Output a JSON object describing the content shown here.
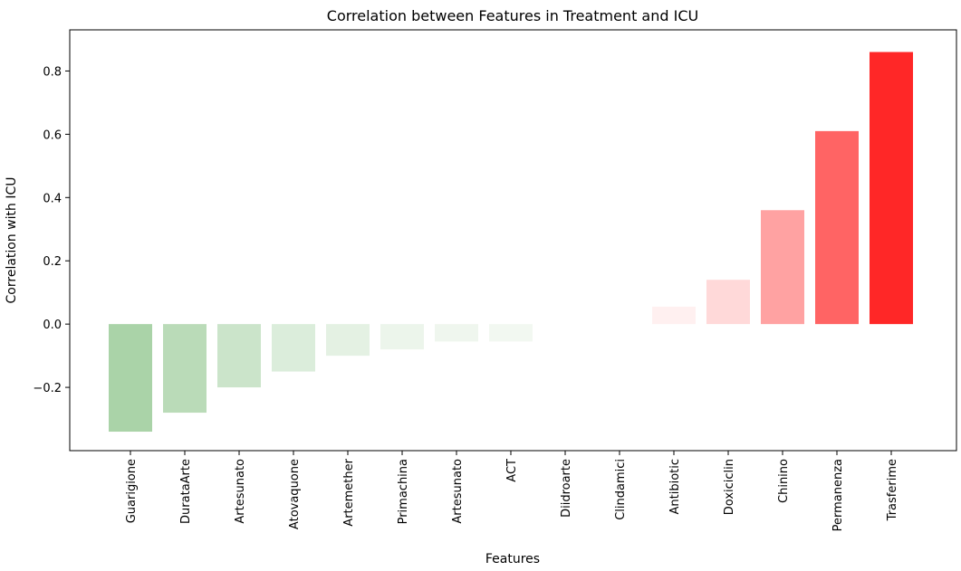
{
  "chart_data": {
    "type": "bar",
    "title": "Correlation between Features in Treatment and ICU",
    "xlabel": "Features",
    "ylabel": "Correlation with ICU",
    "categories": [
      "Guarigione",
      "DurataArte",
      "Artesunato",
      "Atovaquone",
      "Artemether",
      "Primachina",
      "Artesunato",
      "ACT",
      "Diidroarte",
      "Clindamici",
      "Antibiotic",
      "Doxiciclin",
      "Chinino",
      "Permanenza",
      "Trasferime"
    ],
    "values": [
      -0.34,
      -0.28,
      -0.2,
      -0.15,
      -0.1,
      -0.08,
      -0.055,
      -0.055,
      0.0,
      0.0,
      0.055,
      0.14,
      0.36,
      0.61,
      0.86
    ],
    "colors": [
      "#aad3a8",
      "#badbb8",
      "#cbe4ca",
      "#dbeddb",
      "#e4f1e3",
      "#ecf5eb",
      "#eff6ee",
      "#f2f8f1",
      "#ffffff",
      "#ffffff",
      "#fff0f0",
      "#ffd9d9",
      "#ffa2a2",
      "#ff6464",
      "#ff2727"
    ],
    "ylim": [
      -0.4,
      0.93
    ],
    "yticks": [
      -0.2,
      0.0,
      0.2,
      0.4,
      0.6,
      0.8
    ],
    "ytick_labels": [
      "−0.2",
      "0.0",
      "0.2",
      "0.4",
      "0.6",
      "0.8"
    ],
    "grid": false,
    "legend": "none"
  }
}
